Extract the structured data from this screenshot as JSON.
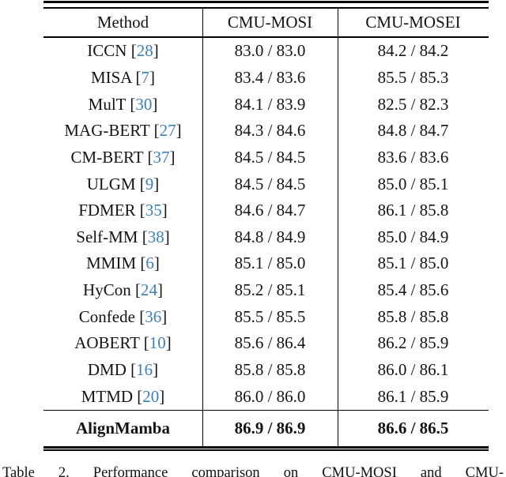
{
  "colors": {
    "background": "#ffffff",
    "text": "#141414",
    "rule": "#000000",
    "citation_blue": "#3d7ebf"
  },
  "table": {
    "columns": [
      "Method",
      "CMU-MOSI",
      "CMU-MOSEI"
    ],
    "cite_open": "[",
    "cite_close": "]",
    "rows": [
      {
        "method": "ICCN",
        "ref": "28",
        "mosi": "83.0 / 83.0",
        "mosei": "84.2 / 84.2"
      },
      {
        "method": "MISA",
        "ref": "7",
        "mosi": "83.4 / 83.6",
        "mosei": "85.5 / 85.3"
      },
      {
        "method": "MulT",
        "ref": "30",
        "mosi": "84.1 / 83.9",
        "mosei": "82.5 / 82.3"
      },
      {
        "method": "MAG-BERT",
        "ref": "27",
        "mosi": "84.3 / 84.6",
        "mosei": "84.8 / 84.7"
      },
      {
        "method": "CM-BERT",
        "ref": "37",
        "mosi": "84.5 / 84.5",
        "mosei": "83.6 / 83.6"
      },
      {
        "method": "ULGM",
        "ref": "9",
        "mosi": "84.5 / 84.5",
        "mosei": "85.0 / 85.1"
      },
      {
        "method": "FDMER",
        "ref": "35",
        "mosi": "84.6 / 84.7",
        "mosei": "86.1 / 85.8"
      },
      {
        "method": "Self-MM",
        "ref": "38",
        "mosi": "84.8 / 84.9",
        "mosei": "85.0 / 84.9"
      },
      {
        "method": "MMIM",
        "ref": "6",
        "mosi": "85.1 / 85.0",
        "mosei": "85.1 / 85.0"
      },
      {
        "method": "HyCon",
        "ref": "24",
        "mosi": "85.2 / 85.1",
        "mosei": "85.4 / 85.6"
      },
      {
        "method": "Confede",
        "ref": "36",
        "mosi": "85.5 / 85.5",
        "mosei": "85.8 / 85.8"
      },
      {
        "method": "AOBERT",
        "ref": "10",
        "mosi": "85.6 / 86.4",
        "mosei": "86.2 / 85.9"
      },
      {
        "method": "DMD",
        "ref": "16",
        "mosi": "85.8 / 85.8",
        "mosei": "86.0 / 86.1"
      },
      {
        "method": "MTMD",
        "ref": "20",
        "mosi": "86.0 / 86.0",
        "mosei": "86.1 / 85.9"
      }
    ],
    "highlight_row": {
      "method": "AlignMamba",
      "mosi": "86.9 / 86.9",
      "mosei": "86.6 / 86.5"
    }
  },
  "caption": "Table 2. Performance comparison on CMU-MOSI and CMU-"
}
